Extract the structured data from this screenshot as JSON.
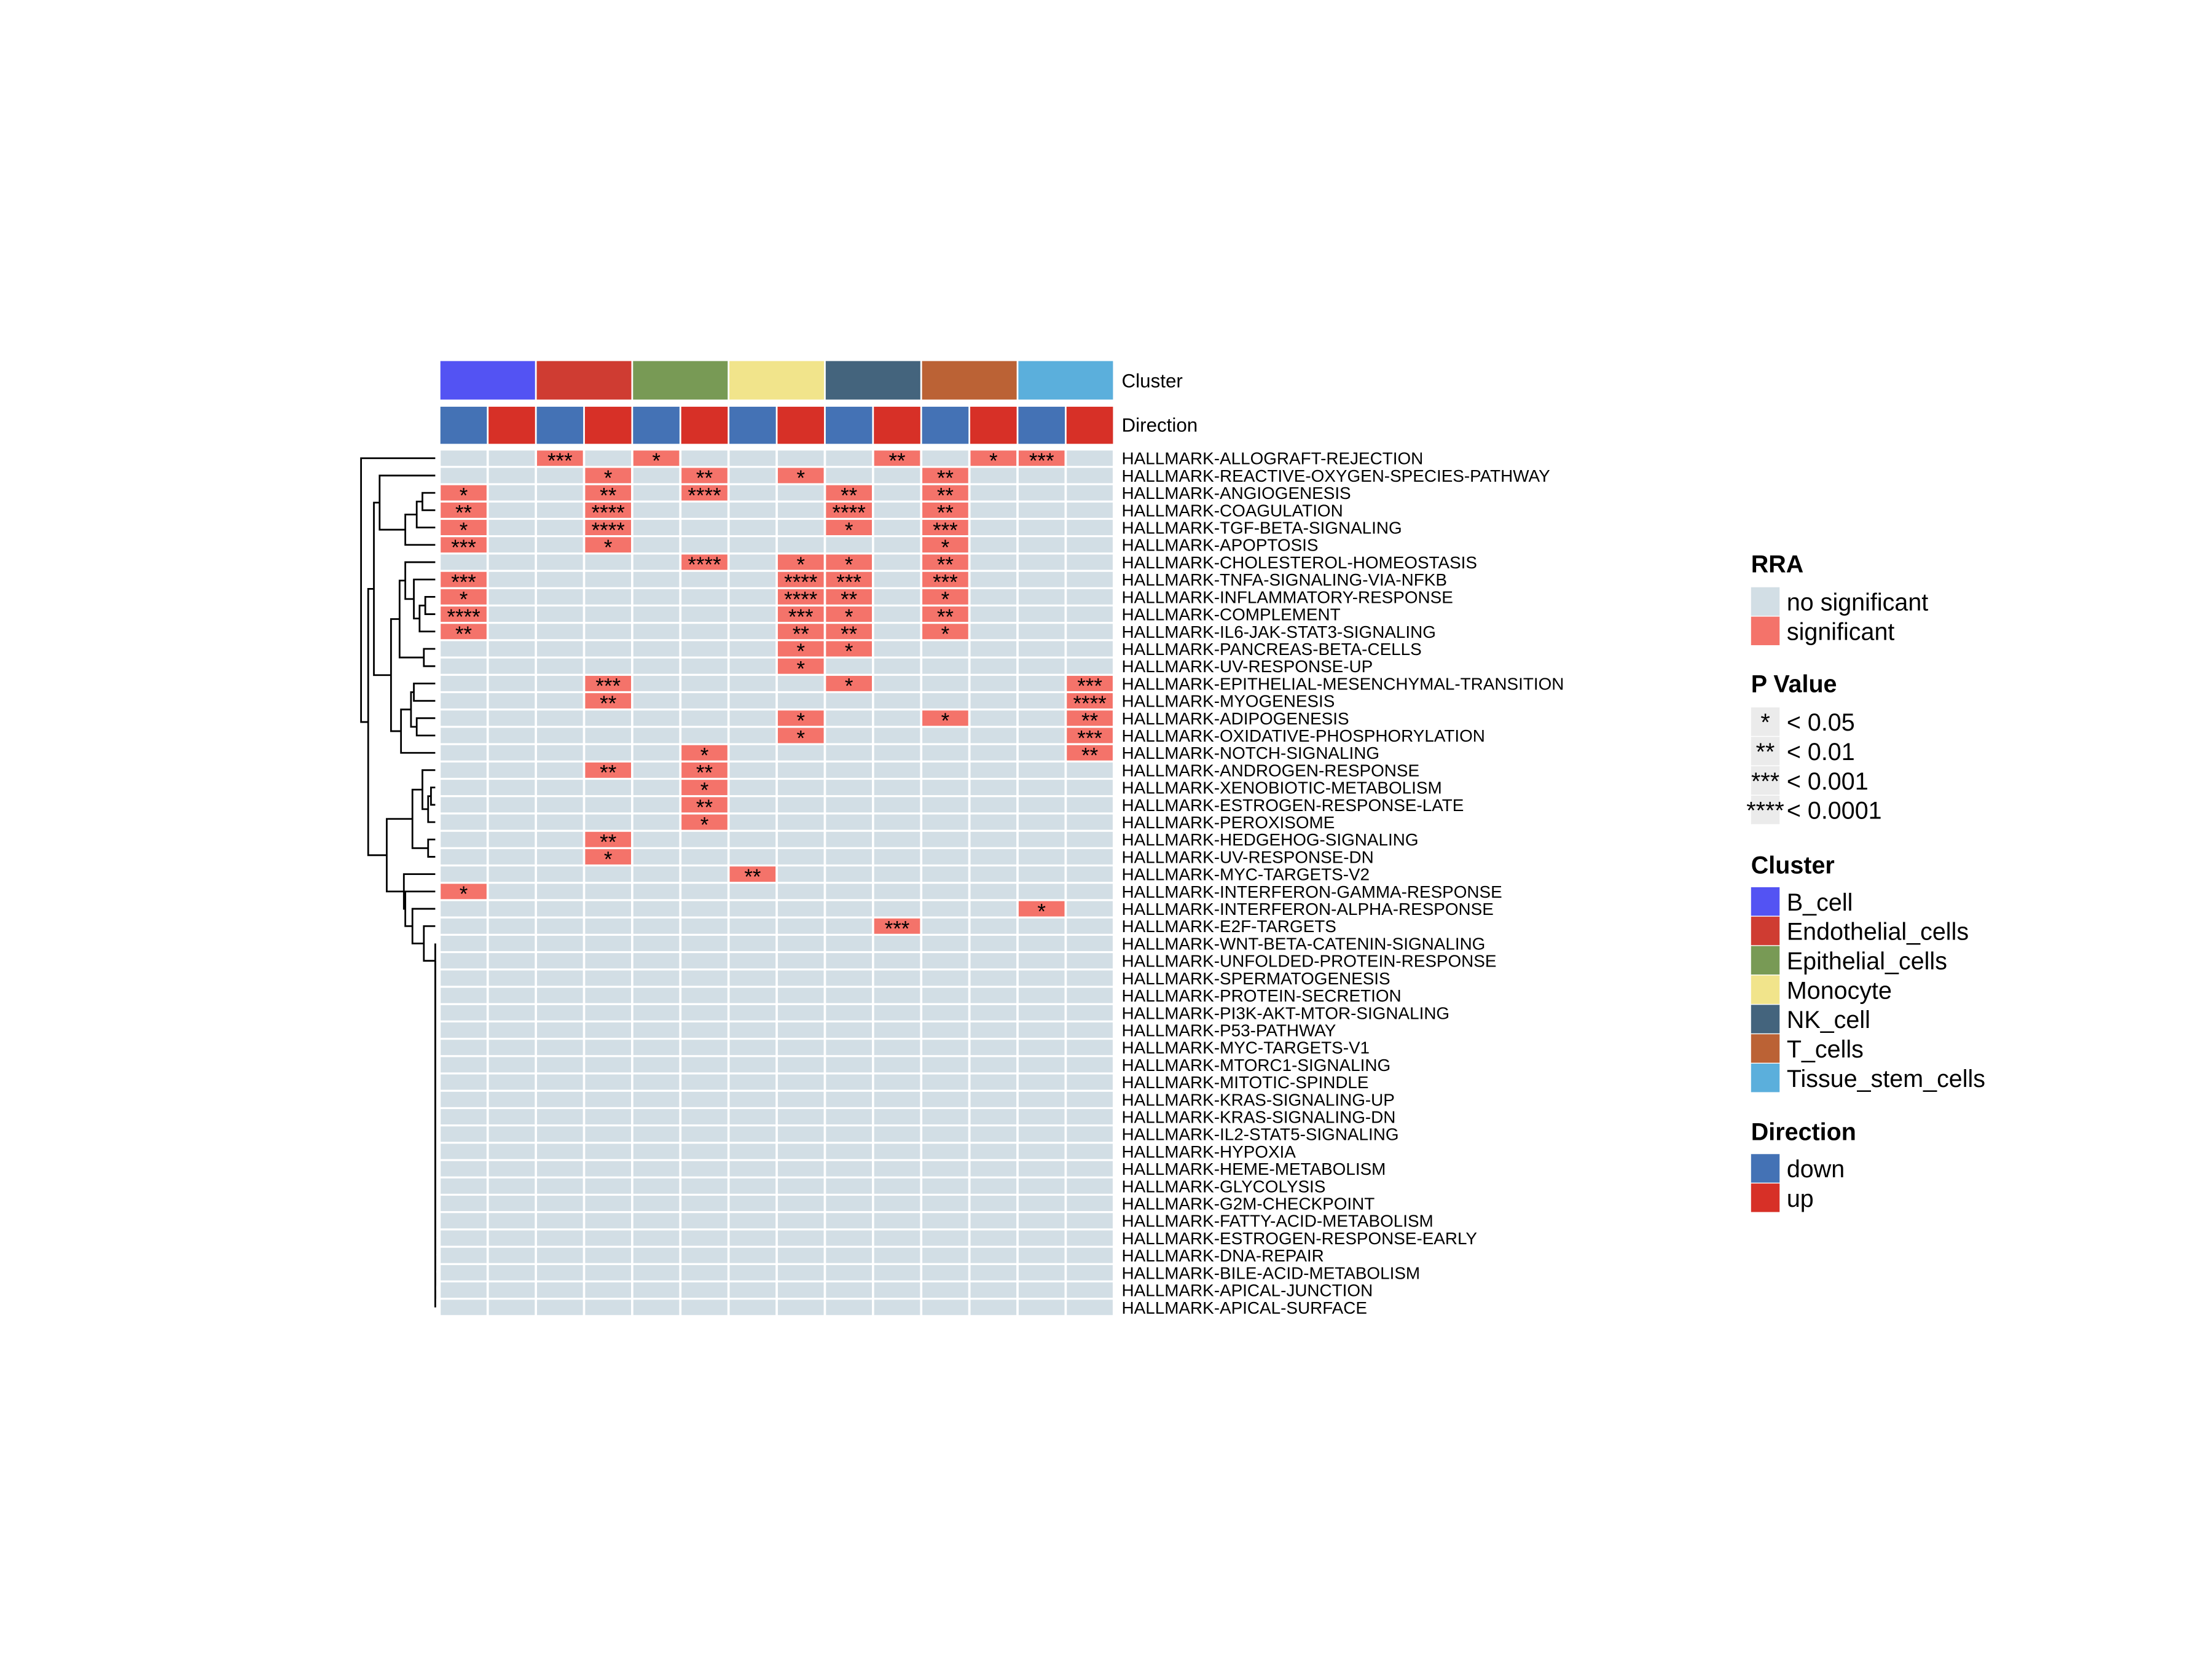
{
  "chart_data": {
    "type": "heatmap",
    "annotations": {
      "cluster_label": "Cluster",
      "direction_label": "Direction"
    },
    "columns": [
      {
        "cluster": "B_cell",
        "direction": "down"
      },
      {
        "cluster": "B_cell",
        "direction": "up"
      },
      {
        "cluster": "Endothelial_cells",
        "direction": "down"
      },
      {
        "cluster": "Endothelial_cells",
        "direction": "up"
      },
      {
        "cluster": "Epithelial_cells",
        "direction": "down"
      },
      {
        "cluster": "Epithelial_cells",
        "direction": "up"
      },
      {
        "cluster": "Monocyte",
        "direction": "down"
      },
      {
        "cluster": "Monocyte",
        "direction": "up"
      },
      {
        "cluster": "NK_cell",
        "direction": "down"
      },
      {
        "cluster": "NK_cell",
        "direction": "up"
      },
      {
        "cluster": "T_cells",
        "direction": "down"
      },
      {
        "cluster": "T_cells",
        "direction": "up"
      },
      {
        "cluster": "Tissue_stem_cells",
        "direction": "down"
      },
      {
        "cluster": "Tissue_stem_cells",
        "direction": "up"
      }
    ],
    "rows": [
      {
        "name": "HALLMARK-ALLOGRAFT-REJECTION",
        "sig": {
          "2": "***",
          "4": "*",
          "9": "**",
          "11": "*",
          "12": "***"
        }
      },
      {
        "name": "HALLMARK-REACTIVE-OXYGEN-SPECIES-PATHWAY",
        "sig": {
          "3": "*",
          "5": "**",
          "7": "*",
          "10": "**"
        }
      },
      {
        "name": "HALLMARK-ANGIOGENESIS",
        "sig": {
          "0": "*",
          "3": "**",
          "5": "****",
          "8": "**",
          "10": "**"
        }
      },
      {
        "name": "HALLMARK-COAGULATION",
        "sig": {
          "0": "**",
          "3": "****",
          "8": "****",
          "10": "**"
        }
      },
      {
        "name": "HALLMARK-TGF-BETA-SIGNALING",
        "sig": {
          "0": "*",
          "3": "****",
          "8": "*",
          "10": "***"
        }
      },
      {
        "name": "HALLMARK-APOPTOSIS",
        "sig": {
          "0": "***",
          "3": "*",
          "10": "*"
        }
      },
      {
        "name": "HALLMARK-CHOLESTEROL-HOMEOSTASIS",
        "sig": {
          "5": "****",
          "7": "*",
          "8": "*",
          "10": "**"
        }
      },
      {
        "name": "HALLMARK-TNFA-SIGNALING-VIA-NFKB",
        "sig": {
          "0": "***",
          "7": "****",
          "8": "***",
          "10": "***"
        }
      },
      {
        "name": "HALLMARK-INFLAMMATORY-RESPONSE",
        "sig": {
          "0": "*",
          "7": "****",
          "8": "**",
          "10": "*"
        }
      },
      {
        "name": "HALLMARK-COMPLEMENT",
        "sig": {
          "0": "****",
          "7": "***",
          "8": "*",
          "10": "**"
        }
      },
      {
        "name": "HALLMARK-IL6-JAK-STAT3-SIGNALING",
        "sig": {
          "0": "**",
          "7": "**",
          "8": "**",
          "10": "*"
        }
      },
      {
        "name": "HALLMARK-PANCREAS-BETA-CELLS",
        "sig": {
          "7": "*",
          "8": "*"
        }
      },
      {
        "name": "HALLMARK-UV-RESPONSE-UP",
        "sig": {
          "7": "*"
        }
      },
      {
        "name": "HALLMARK-EPITHELIAL-MESENCHYMAL-TRANSITION",
        "sig": {
          "3": "***",
          "8": "*",
          "13": "***"
        }
      },
      {
        "name": "HALLMARK-MYOGENESIS",
        "sig": {
          "3": "**",
          "13": "****"
        }
      },
      {
        "name": "HALLMARK-ADIPOGENESIS",
        "sig": {
          "7": "*",
          "10": "*",
          "13": "**"
        }
      },
      {
        "name": "HALLMARK-OXIDATIVE-PHOSPHORYLATION",
        "sig": {
          "7": "*",
          "13": "***"
        }
      },
      {
        "name": "HALLMARK-NOTCH-SIGNALING",
        "sig": {
          "5": "*",
          "13": "**"
        }
      },
      {
        "name": "HALLMARK-ANDROGEN-RESPONSE",
        "sig": {
          "3": "**",
          "5": "**"
        }
      },
      {
        "name": "HALLMARK-XENOBIOTIC-METABOLISM",
        "sig": {
          "5": "*"
        }
      },
      {
        "name": "HALLMARK-ESTROGEN-RESPONSE-LATE",
        "sig": {
          "5": "**"
        }
      },
      {
        "name": "HALLMARK-PEROXISOME",
        "sig": {
          "5": "*"
        }
      },
      {
        "name": "HALLMARK-HEDGEHOG-SIGNALING",
        "sig": {
          "3": "**"
        }
      },
      {
        "name": "HALLMARK-UV-RESPONSE-DN",
        "sig": {
          "3": "*"
        }
      },
      {
        "name": "HALLMARK-MYC-TARGETS-V2",
        "sig": {
          "6": "**"
        }
      },
      {
        "name": "HALLMARK-INTERFERON-GAMMA-RESPONSE",
        "sig": {
          "0": "*"
        }
      },
      {
        "name": "HALLMARK-INTERFERON-ALPHA-RESPONSE",
        "sig": {
          "12": "*"
        }
      },
      {
        "name": "HALLMARK-E2F-TARGETS",
        "sig": {
          "9": "***"
        }
      },
      {
        "name": "HALLMARK-WNT-BETA-CATENIN-SIGNALING",
        "sig": {}
      },
      {
        "name": "HALLMARK-UNFOLDED-PROTEIN-RESPONSE",
        "sig": {}
      },
      {
        "name": "HALLMARK-SPERMATOGENESIS",
        "sig": {}
      },
      {
        "name": "HALLMARK-PROTEIN-SECRETION",
        "sig": {}
      },
      {
        "name": "HALLMARK-PI3K-AKT-MTOR-SIGNALING",
        "sig": {}
      },
      {
        "name": "HALLMARK-P53-PATHWAY",
        "sig": {}
      },
      {
        "name": "HALLMARK-MYC-TARGETS-V1",
        "sig": {}
      },
      {
        "name": "HALLMARK-MTORC1-SIGNALING",
        "sig": {}
      },
      {
        "name": "HALLMARK-MITOTIC-SPINDLE",
        "sig": {}
      },
      {
        "name": "HALLMARK-KRAS-SIGNALING-UP",
        "sig": {}
      },
      {
        "name": "HALLMARK-KRAS-SIGNALING-DN",
        "sig": {}
      },
      {
        "name": "HALLMARK-IL2-STAT5-SIGNALING",
        "sig": {}
      },
      {
        "name": "HALLMARK-HYPOXIA",
        "sig": {}
      },
      {
        "name": "HALLMARK-HEME-METABOLISM",
        "sig": {}
      },
      {
        "name": "HALLMARK-GLYCOLYSIS",
        "sig": {}
      },
      {
        "name": "HALLMARK-G2M-CHECKPOINT",
        "sig": {}
      },
      {
        "name": "HALLMARK-FATTY-ACID-METABOLISM",
        "sig": {}
      },
      {
        "name": "HALLMARK-ESTROGEN-RESPONSE-EARLY",
        "sig": {}
      },
      {
        "name": "HALLMARK-DNA-REPAIR",
        "sig": {}
      },
      {
        "name": "HALLMARK-BILE-ACID-METABOLISM",
        "sig": {}
      },
      {
        "name": "HALLMARK-APICAL-JUNCTION",
        "sig": {}
      },
      {
        "name": "HALLMARK-APICAL-SURFACE",
        "sig": {}
      }
    ],
    "legends": {
      "rra": {
        "title": "RRA",
        "items": [
          {
            "label": "no significant",
            "color": "#D2DEE5"
          },
          {
            "label": "significant",
            "color": "#F4736A"
          }
        ]
      },
      "pvalue": {
        "title": "P Value",
        "swatch_color": "#EBEBEB",
        "items": [
          {
            "symbol": "*",
            "label": "< 0.05"
          },
          {
            "symbol": "**",
            "label": "< 0.01"
          },
          {
            "symbol": "***",
            "label": "< 0.001"
          },
          {
            "symbol": "****",
            "label": "< 0.0001"
          }
        ]
      },
      "cluster": {
        "title": "Cluster",
        "items": [
          {
            "label": "B_cell",
            "color": "#5353F3"
          },
          {
            "label": "Endothelial_cells",
            "color": "#CF3C32"
          },
          {
            "label": "Epithelial_cells",
            "color": "#789A55"
          },
          {
            "label": "Monocyte",
            "color": "#F1E48B"
          },
          {
            "label": "NK_cell",
            "color": "#44647D"
          },
          {
            "label": "T_cells",
            "color": "#BB6235"
          },
          {
            "label": "Tissue_stem_cells",
            "color": "#5BAFDC"
          }
        ]
      },
      "direction": {
        "title": "Direction",
        "items": [
          {
            "label": "down",
            "color": "#4472B5"
          },
          {
            "label": "up",
            "color": "#D73027"
          }
        ]
      }
    }
  }
}
